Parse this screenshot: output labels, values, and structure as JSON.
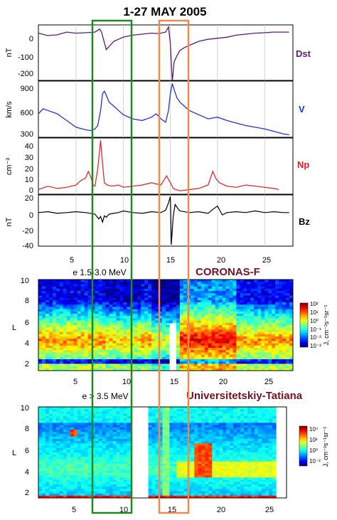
{
  "title": "1-27 MAY 2005",
  "colors": {
    "dst": "#5b1a78",
    "v": "#1f33d6",
    "np": "#e41a1c",
    "bz": "#000000",
    "green_box": "#1e8a1e",
    "orange_box": "#f08a4b",
    "annotation": "#7a1020"
  },
  "annotations": {
    "mission": "CORONAS-F",
    "station": "Universitetskiy-Tatiana"
  },
  "chart_data": [
    {
      "type": "line",
      "panel": "Dst",
      "ylabel": "nT",
      "label": "Dst",
      "yticks": [
        "0",
        "-100",
        "-200"
      ],
      "ylim": [
        -240,
        30
      ],
      "xlim": [
        1,
        28
      ],
      "x": [
        1,
        2,
        3,
        4,
        5,
        6,
        7,
        7.5,
        7.7,
        7.9,
        8.2,
        8.6,
        9,
        9.5,
        10,
        11,
        12,
        13,
        13.5,
        14,
        14.5,
        14.8,
        15.0,
        15.2,
        15.4,
        15.7,
        16,
        16.5,
        17,
        17.5,
        18,
        19,
        20,
        21,
        22,
        23,
        24,
        25,
        26,
        27,
        27.6
      ],
      "y": [
        -10,
        -22,
        -18,
        -5,
        -10,
        -8,
        -5,
        10,
        -5,
        -40,
        -90,
        -70,
        -50,
        -40,
        -30,
        -20,
        -15,
        -10,
        -12,
        -10,
        -5,
        20,
        -60,
        -247,
        -150,
        -120,
        -95,
        -80,
        -70,
        -60,
        -50,
        -40,
        -35,
        -30,
        -20,
        -15,
        -10,
        -8,
        -5,
        -5,
        -5
      ]
    },
    {
      "type": "line",
      "panel": "V",
      "ylabel": "km/s",
      "label": "V",
      "yticks": [
        "300",
        "600",
        "900"
      ],
      "ylim": [
        280,
        950
      ],
      "xlim": [
        1,
        28
      ],
      "x": [
        1,
        1.5,
        2,
        3,
        4,
        5,
        6,
        6.5,
        7,
        7.3,
        7.6,
        7.8,
        8.0,
        8.2,
        8.5,
        9,
        9.5,
        10,
        11,
        12,
        13,
        13.5,
        14,
        14.5,
        14.8,
        15.0,
        15.2,
        15.4,
        15.7,
        16,
        16.5,
        17,
        18,
        19,
        20,
        21,
        22,
        23,
        24,
        25,
        26,
        27,
        27.6
      ],
      "y": [
        560,
        620,
        600,
        560,
        480,
        400,
        370,
        360,
        380,
        420,
        600,
        800,
        830,
        780,
        700,
        650,
        600,
        550,
        500,
        480,
        520,
        560,
        500,
        460,
        600,
        800,
        920,
        850,
        750,
        700,
        650,
        600,
        550,
        500,
        520,
        480,
        450,
        420,
        400,
        380,
        350,
        320,
        310
      ]
    },
    {
      "type": "line",
      "panel": "Np",
      "ylabel": "cm⁻³",
      "label": "Np",
      "yticks": [
        "0",
        "10",
        "20",
        "30",
        "40"
      ],
      "ylim": [
        -2,
        47
      ],
      "xlim": [
        1,
        28
      ],
      "x": [
        1,
        2,
        3,
        4,
        5,
        5.5,
        6,
        6.3,
        6.6,
        6.8,
        7,
        7.3,
        7.6,
        7.8,
        8.0,
        8.3,
        8.8,
        9.5,
        10,
        11,
        12,
        13,
        14,
        14.3,
        14.6,
        15.0,
        15.3,
        15.6,
        16,
        17,
        18,
        19,
        19.5,
        19.8,
        20.2,
        21,
        22,
        23,
        24,
        25,
        26,
        26.5
      ],
      "y": [
        2,
        5,
        3,
        4,
        6,
        10,
        12,
        18,
        12,
        6,
        5,
        20,
        45,
        25,
        8,
        6,
        5,
        6,
        4,
        5,
        6,
        8,
        6,
        10,
        14,
        8,
        3,
        2,
        1,
        2,
        3,
        6,
        18,
        12,
        8,
        5,
        4,
        6,
        5,
        4,
        3,
        2
      ]
    },
    {
      "type": "line",
      "panel": "Bz",
      "ylabel": "nT",
      "label": "Bz",
      "yticks": [
        "20",
        "0",
        "-20",
        "-40"
      ],
      "ylim": [
        -42,
        22
      ],
      "xlim": [
        1,
        28
      ],
      "x": [
        1,
        2,
        3,
        4,
        5,
        6,
        7,
        7.4,
        7.6,
        7.8,
        8.0,
        8.2,
        8.5,
        9,
        9.5,
        10,
        11,
        12,
        13,
        14,
        14.5,
        14.8,
        15.0,
        15.1,
        15.3,
        15.5,
        15.8,
        16,
        17,
        18,
        19,
        19.5,
        20,
        20.5,
        21,
        22,
        23,
        24,
        25,
        26,
        27,
        27.6
      ],
      "y": [
        0,
        1,
        -1,
        0,
        1,
        0,
        -2,
        -8,
        -5,
        -12,
        -4,
        -6,
        -2,
        -1,
        0,
        2,
        0,
        -1,
        1,
        0,
        3,
        12,
        20,
        -40,
        -5,
        10,
        5,
        2,
        0,
        1,
        -1,
        4,
        8,
        -3,
        0,
        1,
        0,
        2,
        0,
        1,
        0,
        0
      ]
    },
    {
      "type": "heatmap",
      "panel": "e 1.5-3.0 MeV",
      "subtitle": "e 1.5-3.0 MeV",
      "ylabel": "L",
      "xlim": [
        1,
        28
      ],
      "ylim": [
        1.5,
        10
      ],
      "yticks": [
        "2",
        "4",
        "6",
        "8",
        "10"
      ],
      "colorbar": {
        "label": "J, cm⁻²s⁻¹sr⁻¹",
        "ticks": [
          "10²",
          "10¹",
          "10⁰",
          "10⁻¹",
          "10⁻²",
          "10⁻³"
        ],
        "range_log10": [
          -3,
          2
        ]
      }
    },
    {
      "type": "heatmap",
      "panel": "e > 3.5 MeV",
      "subtitle": "e > 3.5 MeV",
      "ylabel": "L",
      "xlim": [
        1,
        28
      ],
      "ylim": [
        1.5,
        10
      ],
      "yticks": [
        "2",
        "4",
        "6",
        "8",
        "10"
      ],
      "colorbar": {
        "label": "J, cm⁻²s⁻¹sr⁻¹",
        "ticks": [
          "10⁴",
          "10²",
          "10⁰",
          "10⁻²"
        ],
        "range_log10": [
          -3,
          5
        ]
      }
    }
  ],
  "xticks": [
    "5",
    "10",
    "15",
    "20",
    "25"
  ],
  "xtick_values": [
    5,
    10,
    15,
    20,
    25
  ]
}
